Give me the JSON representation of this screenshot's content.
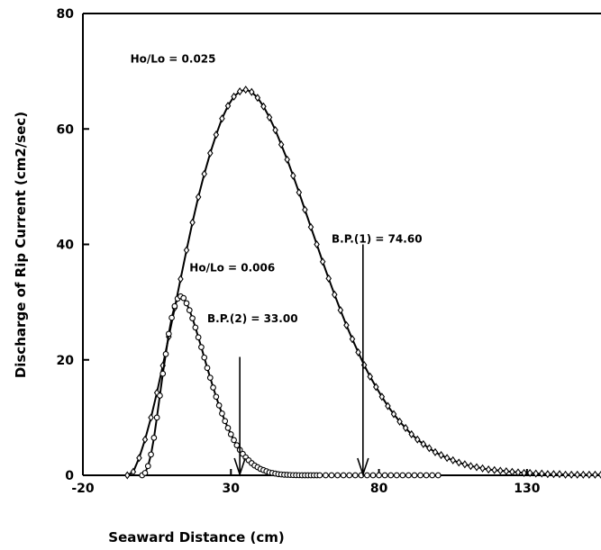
{
  "chart_data": {
    "type": "line",
    "title": "",
    "xlabel": "Seaward Distance (cm)",
    "ylabel": "Discharge of Rip Current (cm2/sec)",
    "xlim": [
      -20,
      155
    ],
    "ylim": [
      0,
      80
    ],
    "x_ticks": [
      "-20",
      "30",
      "80",
      "130"
    ],
    "y_ticks": [
      "0",
      "20",
      "40",
      "60",
      "80"
    ],
    "grid": false,
    "legend": "none",
    "series": [
      {
        "label": "Ho/Lo = 0.025",
        "marker": "diamond",
        "x": [
          -5,
          -3,
          -1,
          1,
          3,
          5,
          7,
          9,
          11,
          13,
          15,
          17,
          19,
          21,
          23,
          25,
          27,
          29,
          31,
          33,
          35,
          37,
          39,
          41,
          43,
          45,
          47,
          49,
          51,
          53,
          55,
          57,
          59,
          61,
          63,
          65,
          67,
          69,
          71,
          73,
          75,
          77,
          79,
          81,
          83,
          85,
          87,
          89,
          91,
          93,
          95,
          97,
          99,
          101,
          103,
          105,
          107,
          109,
          111,
          113,
          115,
          117,
          119,
          121,
          123,
          125,
          127,
          129,
          131,
          133,
          135,
          137,
          139,
          141,
          143,
          145,
          147,
          149,
          151,
          153,
          155
        ],
        "y": [
          0.0,
          0.6,
          3.0,
          6.2,
          10.0,
          14.3,
          19.0,
          24.0,
          29.0,
          34.0,
          39.0,
          43.8,
          48.2,
          52.2,
          55.8,
          59.0,
          61.8,
          64.0,
          65.6,
          66.5,
          66.8,
          66.4,
          65.4,
          63.9,
          62.0,
          59.8,
          57.3,
          54.7,
          51.9,
          49.0,
          46.0,
          43.0,
          40.0,
          37.0,
          34.1,
          31.3,
          28.6,
          26.0,
          23.6,
          21.3,
          19.1,
          17.1,
          15.3,
          13.6,
          12.0,
          10.6,
          9.3,
          8.2,
          7.1,
          6.2,
          5.4,
          4.7,
          4.0,
          3.5,
          3.0,
          2.6,
          2.2,
          1.9,
          1.6,
          1.4,
          1.2,
          1.0,
          0.9,
          0.8,
          0.7,
          0.6,
          0.5,
          0.4,
          0.4,
          0.3,
          0.3,
          0.2,
          0.2,
          0.2,
          0.1,
          0.1,
          0.1,
          0.1,
          0.1,
          0.1,
          0.1
        ]
      },
      {
        "label": "Ho/Lo = 0.006",
        "marker": "circle",
        "x": [
          0,
          1,
          2,
          3,
          4,
          5,
          6,
          7,
          8,
          9,
          10,
          11,
          12,
          13,
          14,
          15,
          16,
          17,
          18,
          19,
          20,
          21,
          22,
          23,
          24,
          25,
          26,
          27,
          28,
          29,
          30,
          31,
          32,
          33,
          34,
          35,
          36,
          37,
          38,
          39,
          40,
          41,
          42,
          43,
          44,
          45,
          46,
          47,
          48,
          49,
          50,
          51,
          52,
          53,
          54,
          55,
          56,
          57,
          58,
          59,
          60,
          62,
          64,
          66,
          68,
          70,
          72,
          74,
          76,
          78,
          80,
          82,
          84,
          86,
          88,
          90,
          92,
          94,
          96,
          98,
          100
        ],
        "y": [
          0.0,
          0.4,
          1.6,
          3.6,
          6.5,
          10.0,
          13.8,
          17.6,
          21.0,
          24.5,
          27.3,
          29.3,
          30.6,
          31.0,
          30.7,
          29.8,
          28.6,
          27.2,
          25.6,
          23.9,
          22.2,
          20.4,
          18.6,
          16.9,
          15.2,
          13.6,
          12.1,
          10.7,
          9.4,
          8.2,
          7.1,
          6.1,
          5.2,
          4.4,
          3.7,
          3.1,
          2.6,
          2.1,
          1.7,
          1.4,
          1.1,
          0.9,
          0.7,
          0.5,
          0.4,
          0.3,
          0.2,
          0.15,
          0.1,
          0.08,
          0.05,
          0.03,
          0.02,
          0.01,
          0.0,
          0.0,
          0.0,
          0.0,
          0.0,
          0.0,
          0.0,
          0.0,
          0.0,
          0.0,
          0.0,
          0.0,
          0.0,
          0.0,
          0.0,
          0.0,
          0.0,
          0.0,
          0.0,
          0.0,
          0.0,
          0.0,
          0.0,
          0.0,
          0.0,
          0.0,
          0.0
        ]
      }
    ],
    "annotations": [
      {
        "text": "Ho/Lo = 0.025",
        "x": -4,
        "y": 71.5
      },
      {
        "text": "Ho/Lo = 0.006",
        "x": 16,
        "y": 35.3
      },
      {
        "text": "B.P.(1) = 74.60",
        "x": 64,
        "y": 40.3
      },
      {
        "text": "B.P.(2) = 33.00",
        "x": 22,
        "y": 26.5
      }
    ],
    "arrows": [
      {
        "x": 74.6,
        "y_from": 40.0,
        "y_to": 0
      },
      {
        "x": 33.0,
        "y_from": 20.5,
        "y_to": 0
      }
    ]
  }
}
